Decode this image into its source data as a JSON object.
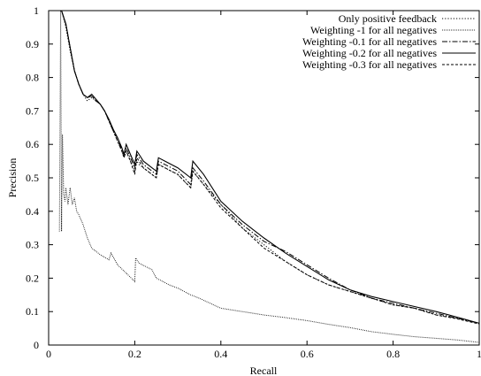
{
  "chart_data": {
    "type": "line",
    "xlabel": "Recall",
    "ylabel": "Precision",
    "xlim": [
      0,
      1
    ],
    "ylim": [
      0,
      1
    ],
    "x_ticks": [
      "0",
      "0.2",
      "0.4",
      "0.6",
      "0.8",
      "1"
    ],
    "y_ticks": [
      "0",
      "0.1",
      "0.2",
      "0.3",
      "0.4",
      "0.5",
      "0.6",
      "0.7",
      "0.8",
      "0.9",
      "1"
    ],
    "grid": false,
    "legend_position": "top-right",
    "series": [
      {
        "name": "Only positive feedback",
        "dash": "1.2,2",
        "width": 1,
        "points": [
          [
            0.03,
            1.0
          ],
          [
            0.04,
            0.95
          ],
          [
            0.05,
            0.88
          ],
          [
            0.06,
            0.82
          ],
          [
            0.07,
            0.78
          ],
          [
            0.08,
            0.75
          ],
          [
            0.09,
            0.73
          ],
          [
            0.1,
            0.74
          ],
          [
            0.11,
            0.73
          ],
          [
            0.12,
            0.72
          ],
          [
            0.13,
            0.7
          ],
          [
            0.14,
            0.67
          ],
          [
            0.15,
            0.64
          ],
          [
            0.16,
            0.61
          ],
          [
            0.17,
            0.58
          ],
          [
            0.175,
            0.56
          ],
          [
            0.18,
            0.58
          ],
          [
            0.19,
            0.55
          ],
          [
            0.2,
            0.52
          ],
          [
            0.205,
            0.55
          ],
          [
            0.21,
            0.54
          ],
          [
            0.22,
            0.53
          ],
          [
            0.24,
            0.51
          ],
          [
            0.25,
            0.5
          ],
          [
            0.255,
            0.54
          ],
          [
            0.27,
            0.53
          ],
          [
            0.3,
            0.51
          ],
          [
            0.33,
            0.47
          ],
          [
            0.335,
            0.52
          ],
          [
            0.36,
            0.48
          ],
          [
            0.4,
            0.42
          ],
          [
            0.45,
            0.35
          ],
          [
            0.5,
            0.3
          ],
          [
            0.55,
            0.25
          ],
          [
            0.6,
            0.21
          ],
          [
            0.65,
            0.18
          ],
          [
            0.7,
            0.16
          ],
          [
            0.75,
            0.14
          ],
          [
            0.8,
            0.12
          ],
          [
            0.85,
            0.11
          ],
          [
            0.9,
            0.09
          ],
          [
            0.95,
            0.08
          ],
          [
            1.0,
            0.065
          ]
        ]
      },
      {
        "name": "Weighting -1 for all negatives",
        "dash": "0.8,1.2",
        "width": 1,
        "points": [
          [
            0.025,
            0.34
          ],
          [
            0.028,
            1.0
          ],
          [
            0.03,
            0.34
          ],
          [
            0.032,
            0.63
          ],
          [
            0.035,
            0.45
          ],
          [
            0.038,
            0.43
          ],
          [
            0.04,
            0.47
          ],
          [
            0.045,
            0.42
          ],
          [
            0.05,
            0.47
          ],
          [
            0.055,
            0.42
          ],
          [
            0.06,
            0.44
          ],
          [
            0.065,
            0.4
          ],
          [
            0.07,
            0.39
          ],
          [
            0.08,
            0.36
          ],
          [
            0.09,
            0.32
          ],
          [
            0.1,
            0.29
          ],
          [
            0.12,
            0.27
          ],
          [
            0.14,
            0.255
          ],
          [
            0.145,
            0.275
          ],
          [
            0.16,
            0.24
          ],
          [
            0.18,
            0.215
          ],
          [
            0.2,
            0.19
          ],
          [
            0.202,
            0.26
          ],
          [
            0.21,
            0.245
          ],
          [
            0.24,
            0.225
          ],
          [
            0.25,
            0.2
          ],
          [
            0.28,
            0.18
          ],
          [
            0.3,
            0.17
          ],
          [
            0.33,
            0.15
          ],
          [
            0.35,
            0.14
          ],
          [
            0.4,
            0.11
          ],
          [
            0.45,
            0.1
          ],
          [
            0.5,
            0.09
          ],
          [
            0.55,
            0.082
          ],
          [
            0.6,
            0.073
          ],
          [
            0.65,
            0.062
          ],
          [
            0.7,
            0.052
          ],
          [
            0.75,
            0.04
          ],
          [
            0.8,
            0.032
          ],
          [
            0.85,
            0.025
          ],
          [
            0.9,
            0.02
          ],
          [
            0.95,
            0.015
          ],
          [
            1.0,
            0.008
          ]
        ]
      },
      {
        "name": "Weighting -0.1 for all negatives",
        "dash": "6,2,1.5,2",
        "width": 1,
        "points": [
          [
            0.03,
            1.0
          ],
          [
            0.04,
            0.96
          ],
          [
            0.05,
            0.89
          ],
          [
            0.06,
            0.82
          ],
          [
            0.07,
            0.78
          ],
          [
            0.08,
            0.75
          ],
          [
            0.09,
            0.74
          ],
          [
            0.1,
            0.745
          ],
          [
            0.11,
            0.73
          ],
          [
            0.12,
            0.72
          ],
          [
            0.13,
            0.7
          ],
          [
            0.14,
            0.67
          ],
          [
            0.15,
            0.64
          ],
          [
            0.16,
            0.62
          ],
          [
            0.17,
            0.58
          ],
          [
            0.175,
            0.57
          ],
          [
            0.18,
            0.59
          ],
          [
            0.19,
            0.56
          ],
          [
            0.2,
            0.53
          ],
          [
            0.205,
            0.57
          ],
          [
            0.21,
            0.56
          ],
          [
            0.22,
            0.54
          ],
          [
            0.24,
            0.52
          ],
          [
            0.25,
            0.51
          ],
          [
            0.255,
            0.55
          ],
          [
            0.27,
            0.54
          ],
          [
            0.3,
            0.52
          ],
          [
            0.33,
            0.48
          ],
          [
            0.335,
            0.53
          ],
          [
            0.36,
            0.49
          ],
          [
            0.4,
            0.42
          ],
          [
            0.45,
            0.36
          ],
          [
            0.5,
            0.31
          ],
          [
            0.55,
            0.28
          ],
          [
            0.6,
            0.24
          ],
          [
            0.65,
            0.2
          ],
          [
            0.7,
            0.165
          ],
          [
            0.75,
            0.14
          ],
          [
            0.8,
            0.125
          ],
          [
            0.85,
            0.11
          ],
          [
            0.9,
            0.095
          ],
          [
            0.95,
            0.08
          ],
          [
            1.0,
            0.065
          ]
        ]
      },
      {
        "name": "Weighting -0.2 for all negatives",
        "dash": "",
        "width": 1.1,
        "points": [
          [
            0.03,
            1.0
          ],
          [
            0.04,
            0.96
          ],
          [
            0.05,
            0.89
          ],
          [
            0.06,
            0.82
          ],
          [
            0.07,
            0.78
          ],
          [
            0.08,
            0.75
          ],
          [
            0.09,
            0.74
          ],
          [
            0.1,
            0.75
          ],
          [
            0.11,
            0.735
          ],
          [
            0.12,
            0.72
          ],
          [
            0.13,
            0.7
          ],
          [
            0.14,
            0.675
          ],
          [
            0.15,
            0.645
          ],
          [
            0.16,
            0.62
          ],
          [
            0.17,
            0.59
          ],
          [
            0.175,
            0.57
          ],
          [
            0.18,
            0.6
          ],
          [
            0.19,
            0.57
          ],
          [
            0.2,
            0.54
          ],
          [
            0.205,
            0.58
          ],
          [
            0.21,
            0.57
          ],
          [
            0.22,
            0.55
          ],
          [
            0.24,
            0.53
          ],
          [
            0.25,
            0.52
          ],
          [
            0.255,
            0.56
          ],
          [
            0.27,
            0.55
          ],
          [
            0.3,
            0.53
          ],
          [
            0.33,
            0.5
          ],
          [
            0.335,
            0.55
          ],
          [
            0.36,
            0.51
          ],
          [
            0.4,
            0.43
          ],
          [
            0.45,
            0.37
          ],
          [
            0.5,
            0.32
          ],
          [
            0.55,
            0.275
          ],
          [
            0.6,
            0.235
          ],
          [
            0.65,
            0.195
          ],
          [
            0.7,
            0.165
          ],
          [
            0.75,
            0.145
          ],
          [
            0.8,
            0.13
          ],
          [
            0.85,
            0.115
          ],
          [
            0.9,
            0.1
          ],
          [
            0.95,
            0.083
          ],
          [
            1.0,
            0.065
          ]
        ]
      },
      {
        "name": "Weighting -0.3 for all negatives",
        "dash": "3,2",
        "width": 1,
        "points": [
          [
            0.03,
            1.0
          ],
          [
            0.04,
            0.96
          ],
          [
            0.05,
            0.89
          ],
          [
            0.06,
            0.82
          ],
          [
            0.07,
            0.78
          ],
          [
            0.08,
            0.75
          ],
          [
            0.09,
            0.74
          ],
          [
            0.1,
            0.745
          ],
          [
            0.11,
            0.73
          ],
          [
            0.12,
            0.72
          ],
          [
            0.13,
            0.7
          ],
          [
            0.14,
            0.67
          ],
          [
            0.15,
            0.64
          ],
          [
            0.16,
            0.61
          ],
          [
            0.17,
            0.58
          ],
          [
            0.175,
            0.56
          ],
          [
            0.18,
            0.58
          ],
          [
            0.19,
            0.55
          ],
          [
            0.2,
            0.51
          ],
          [
            0.205,
            0.56
          ],
          [
            0.21,
            0.55
          ],
          [
            0.22,
            0.53
          ],
          [
            0.24,
            0.51
          ],
          [
            0.25,
            0.5
          ],
          [
            0.255,
            0.54
          ],
          [
            0.27,
            0.53
          ],
          [
            0.3,
            0.51
          ],
          [
            0.33,
            0.47
          ],
          [
            0.335,
            0.52
          ],
          [
            0.36,
            0.48
          ],
          [
            0.4,
            0.41
          ],
          [
            0.45,
            0.35
          ],
          [
            0.5,
            0.29
          ],
          [
            0.55,
            0.25
          ],
          [
            0.6,
            0.21
          ],
          [
            0.65,
            0.18
          ],
          [
            0.7,
            0.16
          ],
          [
            0.75,
            0.14
          ],
          [
            0.8,
            0.12
          ],
          [
            0.85,
            0.11
          ],
          [
            0.9,
            0.09
          ],
          [
            0.95,
            0.078
          ],
          [
            1.0,
            0.063
          ]
        ]
      }
    ]
  }
}
